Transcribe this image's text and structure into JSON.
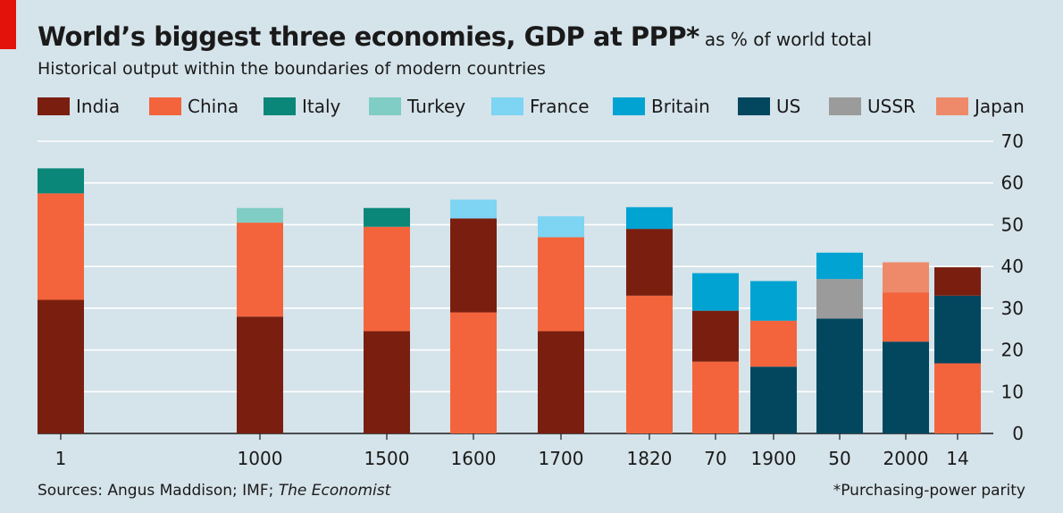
{
  "header": {
    "title": "World’s biggest three economies, GDP at PPP*",
    "title_suffix": "as % of world total",
    "subtitle": "Historical output within the boundaries of modern countries"
  },
  "legend": [
    {
      "name": "India",
      "color": "#7a1f10"
    },
    {
      "name": "China",
      "color": "#f4643c"
    },
    {
      "name": "Italy",
      "color": "#0a8778"
    },
    {
      "name": "Turkey",
      "color": "#7fcdc5"
    },
    {
      "name": "France",
      "color": "#7dd4f3"
    },
    {
      "name": "Britain",
      "color": "#00a3d2"
    },
    {
      "name": "US",
      "color": "#03475f"
    },
    {
      "name": "USSR",
      "color": "#9b9b9b"
    },
    {
      "name": "Japan",
      "color": "#ee8a69"
    }
  ],
  "footer": {
    "sources_prefix": "Sources: Angus Maddison; IMF; ",
    "sources_em": "The Economist",
    "note": "*Purchasing-power parity"
  },
  "chart_data": {
    "type": "bar",
    "stacked": true,
    "categories": [
      "1",
      "1000",
      "1500",
      "1600",
      "1700",
      "1820",
      "70",
      "1900",
      "50",
      "2000",
      "14"
    ],
    "ylim": [
      0,
      70
    ],
    "yticks": [
      0,
      10,
      20,
      30,
      40,
      50,
      60,
      70
    ],
    "y_axis_side": "right",
    "grid": true,
    "legend_position": "top",
    "stacks": [
      {
        "category": "1",
        "segments": [
          {
            "country": "India",
            "value": 32
          },
          {
            "country": "China",
            "value": 25.5
          },
          {
            "country": "Italy",
            "value": 6
          }
        ]
      },
      {
        "category": "1000",
        "segments": [
          {
            "country": "India",
            "value": 28
          },
          {
            "country": "China",
            "value": 22.5
          },
          {
            "country": "Turkey",
            "value": 3.5
          }
        ]
      },
      {
        "category": "1500",
        "segments": [
          {
            "country": "India",
            "value": 24.5
          },
          {
            "country": "China",
            "value": 25
          },
          {
            "country": "Italy",
            "value": 4.5
          }
        ]
      },
      {
        "category": "1600",
        "segments": [
          {
            "country": "China",
            "value": 29
          },
          {
            "country": "India",
            "value": 22.5
          },
          {
            "country": "France",
            "value": 4.5
          }
        ]
      },
      {
        "category": "1700",
        "segments": [
          {
            "country": "India",
            "value": 24.5
          },
          {
            "country": "China",
            "value": 22.5
          },
          {
            "country": "France",
            "value": 5
          }
        ]
      },
      {
        "category": "1820",
        "segments": [
          {
            "country": "China",
            "value": 33
          },
          {
            "country": "India",
            "value": 16
          },
          {
            "country": "Britain",
            "value": 5.2
          }
        ]
      },
      {
        "category": "70",
        "segments": [
          {
            "country": "China",
            "value": 17.2
          },
          {
            "country": "India",
            "value": 12.2
          },
          {
            "country": "Britain",
            "value": 9
          }
        ]
      },
      {
        "category": "1900",
        "segments": [
          {
            "country": "US",
            "value": 16
          },
          {
            "country": "China",
            "value": 11
          },
          {
            "country": "Britain",
            "value": 9.5
          }
        ]
      },
      {
        "category": "50",
        "segments": [
          {
            "country": "US",
            "value": 27.5
          },
          {
            "country": "USSR",
            "value": 9.5
          },
          {
            "country": "Britain",
            "value": 6.3
          }
        ]
      },
      {
        "category": "2000",
        "segments": [
          {
            "country": "US",
            "value": 22
          },
          {
            "country": "China",
            "value": 11.8
          },
          {
            "country": "Japan",
            "value": 7.2
          }
        ]
      },
      {
        "category": "14",
        "segments": [
          {
            "country": "China",
            "value": 16.8
          },
          {
            "country": "US",
            "value": 16.2
          },
          {
            "country": "India",
            "value": 6.8
          }
        ]
      }
    ]
  }
}
